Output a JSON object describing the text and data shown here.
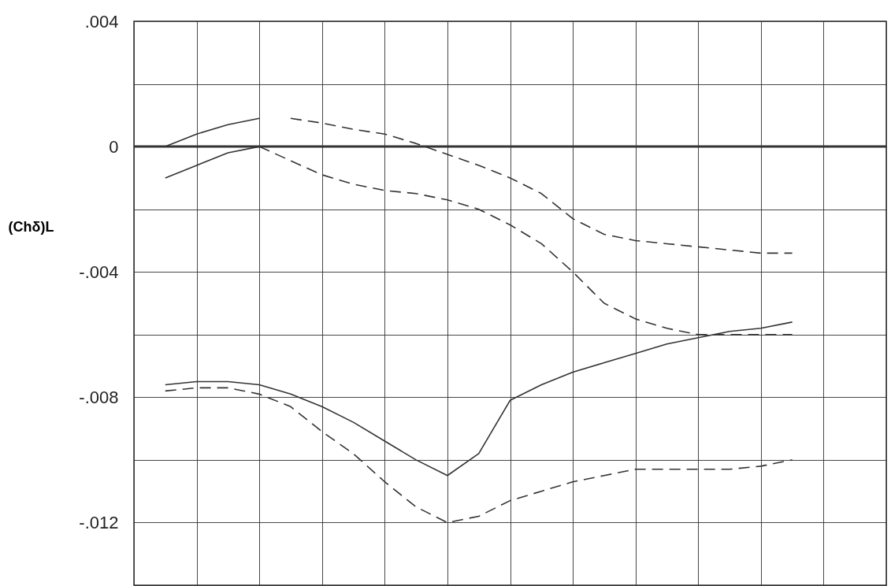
{
  "chart_data": {
    "type": "line",
    "ylabel": "(Chδ)L",
    "categories": [
      null,
      null,
      null,
      null,
      null,
      null,
      null,
      null,
      null,
      null,
      null,
      null,
      null,
      null,
      null,
      null,
      null,
      null,
      null,
      null,
      null,
      null,
      null,
      null,
      null
    ],
    "series": [
      {
        "color": "#333333",
        "line_style": "solid",
        "values": [
          null,
          0,
          0.0004,
          0.0007,
          0.0009,
          null,
          null,
          null,
          null,
          null,
          null,
          null,
          null,
          null,
          null,
          null,
          null,
          null,
          null,
          null,
          null,
          null,
          null,
          null,
          null
        ]
      },
      {
        "color": "#333333",
        "line_style": "dashed",
        "values": [
          null,
          null,
          null,
          null,
          null,
          0.0009,
          0.00075,
          0.00055,
          0.0004,
          0.0001,
          -0.00025,
          -0.0006,
          -0.001,
          -0.0015,
          -0.0023,
          -0.0028,
          -0.003,
          -0.0031,
          -0.0032,
          -0.0033,
          -0.0034,
          -0.0034,
          null,
          null,
          null
        ]
      },
      {
        "color": "#333333",
        "line_style": "solid",
        "values": [
          null,
          -0.001,
          -0.0006,
          -0.0002,
          0,
          null,
          null,
          null,
          null,
          null,
          null,
          null,
          null,
          null,
          null,
          null,
          null,
          null,
          null,
          null,
          null,
          null,
          null,
          null,
          null
        ]
      },
      {
        "color": "#333333",
        "line_style": "dashed",
        "values": [
          null,
          null,
          null,
          null,
          0,
          -0.00045,
          -0.0009,
          -0.0012,
          -0.0014,
          -0.0015,
          -0.0017,
          -0.002,
          -0.0025,
          -0.0031,
          -0.004,
          -0.005,
          -0.0055,
          -0.0058,
          -0.006,
          -0.006,
          -0.006,
          -0.006,
          null,
          null,
          null
        ]
      },
      {
        "color": "#333333",
        "line_style": "solid",
        "values": [
          null,
          -0.0076,
          -0.0075,
          -0.0075,
          -0.0076,
          -0.0079,
          -0.0083,
          -0.0088,
          -0.0094,
          -0.01,
          -0.0105,
          -0.0098,
          -0.0081,
          -0.0076,
          -0.0072,
          -0.0069,
          -0.0066,
          -0.0063,
          -0.0061,
          -0.0059,
          -0.0058,
          -0.0056,
          null,
          null,
          null
        ]
      },
      {
        "color": "#333333",
        "line_style": "dashed",
        "values": [
          null,
          -0.0078,
          -0.0077,
          -0.0077,
          -0.0079,
          -0.0083,
          -0.0091,
          -0.0098,
          -0.0107,
          -0.0115,
          -0.012,
          -0.0118,
          -0.0113,
          -0.011,
          -0.0107,
          -0.0105,
          -0.0103,
          -0.0103,
          -0.0103,
          -0.0103,
          -0.0102,
          -0.01,
          null,
          null,
          null
        ]
      }
    ],
    "ylim": [
      -0.014,
      0.004
    ],
    "yticks": [
      {
        "value": -0.014,
        "label": null
      },
      {
        "value": -0.012,
        "label": "-.012"
      },
      {
        "value": -0.01,
        "label": null
      },
      {
        "value": -0.008,
        "label": "-.008"
      },
      {
        "value": -0.006,
        "label": null
      },
      {
        "value": -0.004,
        "label": "-.004"
      },
      {
        "value": -0.002,
        "label": null
      },
      {
        "value": 0,
        "label": "0"
      },
      {
        "value": 0.002,
        "label": null
      },
      {
        "value": 0.004,
        "label": ".004"
      }
    ],
    "ref_lines": [
      {
        "axis": "y",
        "value": 0,
        "color": "#333333",
        "line_style": "solid"
      }
    ],
    "grid": true,
    "marker": "none",
    "tick_labels": "y"
  }
}
